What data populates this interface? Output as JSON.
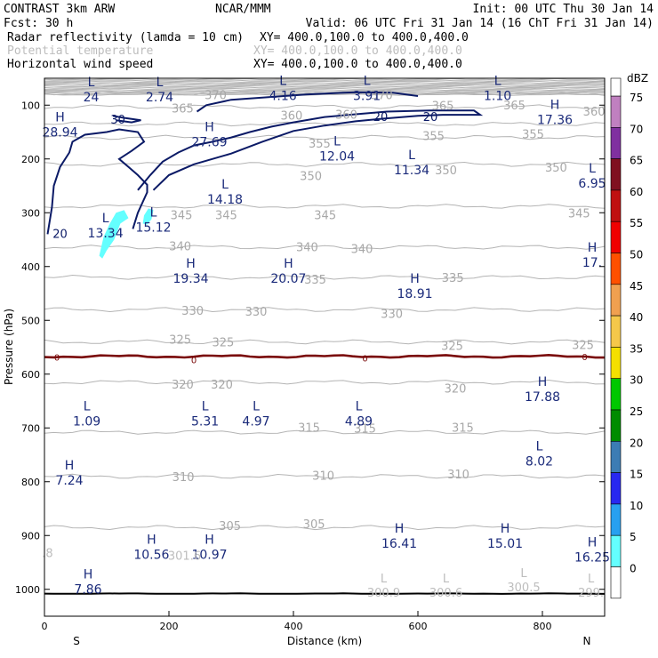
{
  "header": {
    "model": "CONTRAST  3km ARW",
    "center": "NCAR/MMM",
    "init": "Init: 00 UTC Thu 30 Jan 14",
    "fcst": "Fcst:   30 h",
    "valid": "Valid: 06 UTC Fri 31 Jan 14 (16 ChT Fri 31 Jan 14)",
    "fields": [
      {
        "name": "Radar reflectivity (lamda = 10 cm)",
        "xy": "XY= 400.0,100.0 to 400.0,400.0",
        "color": "#000000"
      },
      {
        "name": "Potential temperature",
        "xy": "XY= 400.0,100.0 to 400.0,400.0",
        "color": "#bdbdbd"
      },
      {
        "name": "Horizontal wind speed",
        "xy": "XY= 400.0,100.0 to 400.0,400.0",
        "color": "#000000"
      }
    ]
  },
  "chart_data": {
    "type": "cross-section",
    "xlabel": "Distance (km)",
    "ylabel": "Pressure (hPa)",
    "xlim": [
      0,
      900
    ],
    "ylim": [
      1050,
      50
    ],
    "xticks": [
      0,
      200,
      400,
      600,
      800
    ],
    "yticks": [
      100,
      200,
      300,
      400,
      500,
      600,
      700,
      800,
      900,
      1000
    ],
    "x_end_labels": {
      "left": "S",
      "right": "N"
    },
    "theta_contours": [
      {
        "value": 370,
        "p": 78
      },
      {
        "value": 365,
        "p": 103
      },
      {
        "value": 360,
        "p": 135
      },
      {
        "value": 355,
        "p": 160
      },
      {
        "value": 350,
        "p": 210
      },
      {
        "value": 345,
        "p": 288
      },
      {
        "value": 340,
        "p": 364
      },
      {
        "value": 335,
        "p": 420
      },
      {
        "value": 330,
        "p": 480
      },
      {
        "value": 325,
        "p": 540
      },
      {
        "value": 320,
        "p": 615
      },
      {
        "value": 315,
        "p": 708
      },
      {
        "value": 310,
        "p": 790
      },
      {
        "value": 305,
        "p": 885
      }
    ],
    "theta_labels": [
      {
        "text": "370",
        "x": 275,
        "p": 82
      },
      {
        "text": "370",
        "x": 542,
        "p": 82
      },
      {
        "text": "365",
        "x": 222,
        "p": 107
      },
      {
        "text": "365",
        "x": 640,
        "p": 102
      },
      {
        "text": "365",
        "x": 755,
        "p": 101
      },
      {
        "text": "360",
        "x": 397,
        "p": 120
      },
      {
        "text": "360",
        "x": 485,
        "p": 119
      },
      {
        "text": "360",
        "x": 883,
        "p": 113
      },
      {
        "text": "355",
        "x": 442,
        "p": 172
      },
      {
        "text": "355",
        "x": 625,
        "p": 158
      },
      {
        "text": "355",
        "x": 785,
        "p": 155
      },
      {
        "text": "350",
        "x": 428,
        "p": 233
      },
      {
        "text": "350",
        "x": 645,
        "p": 222
      },
      {
        "text": "350",
        "x": 822,
        "p": 217
      },
      {
        "text": "345",
        "x": 220,
        "p": 305
      },
      {
        "text": "345",
        "x": 292,
        "p": 305
      },
      {
        "text": "345",
        "x": 451,
        "p": 305
      },
      {
        "text": "345",
        "x": 859,
        "p": 302
      },
      {
        "text": "340",
        "x": 218,
        "p": 363
      },
      {
        "text": "340",
        "x": 422,
        "p": 365
      },
      {
        "text": "340",
        "x": 510,
        "p": 368
      },
      {
        "text": "335",
        "x": 435,
        "p": 425
      },
      {
        "text": "335",
        "x": 656,
        "p": 422
      },
      {
        "text": "330",
        "x": 238,
        "p": 483
      },
      {
        "text": "330",
        "x": 340,
        "p": 485
      },
      {
        "text": "330",
        "x": 558,
        "p": 489
      },
      {
        "text": "325",
        "x": 218,
        "p": 537
      },
      {
        "text": "325",
        "x": 287,
        "p": 542
      },
      {
        "text": "325",
        "x": 655,
        "p": 548
      },
      {
        "text": "325",
        "x": 865,
        "p": 547
      },
      {
        "text": "320",
        "x": 222,
        "p": 620
      },
      {
        "text": "320",
        "x": 285,
        "p": 620
      },
      {
        "text": "320",
        "x": 660,
        "p": 628
      },
      {
        "text": "315",
        "x": 425,
        "p": 700
      },
      {
        "text": "315",
        "x": 515,
        "p": 702
      },
      {
        "text": "315",
        "x": 672,
        "p": 700
      },
      {
        "text": "310",
        "x": 223,
        "p": 792
      },
      {
        "text": "310",
        "x": 448,
        "p": 790
      },
      {
        "text": "310",
        "x": 665,
        "p": 787
      },
      {
        "text": "305",
        "x": 298,
        "p": 883
      },
      {
        "text": "305",
        "x": 433,
        "p": 880
      }
    ],
    "wind_speed_contours": [
      {
        "value": 30,
        "points": [
          [
            110,
            120
          ],
          [
            130,
            124
          ],
          [
            155,
            128
          ],
          [
            140,
            132
          ],
          [
            115,
            128
          ]
        ]
      },
      {
        "value": 20,
        "points": [
          [
            5,
            340
          ],
          [
            12,
            290
          ],
          [
            15,
            250
          ],
          [
            25,
            215
          ],
          [
            40,
            188
          ],
          [
            45,
            168
          ],
          [
            65,
            155
          ],
          [
            100,
            150
          ],
          [
            120,
            145
          ],
          [
            150,
            150
          ],
          [
            160,
            168
          ],
          [
            140,
            185
          ],
          [
            120,
            200
          ],
          [
            135,
            215
          ],
          [
            150,
            230
          ],
          [
            165,
            248
          ],
          [
            165,
            262
          ],
          [
            150,
            300
          ],
          [
            142,
            330
          ]
        ]
      },
      {
        "value": 20,
        "points": [
          [
            150,
            258
          ],
          [
            170,
            230
          ],
          [
            190,
            205
          ],
          [
            215,
            188
          ],
          [
            240,
            175
          ],
          [
            270,
            168
          ],
          [
            300,
            160
          ],
          [
            330,
            150
          ],
          [
            365,
            140
          ],
          [
            400,
            132
          ],
          [
            450,
            122
          ],
          [
            500,
            117
          ],
          [
            550,
            112
          ],
          [
            620,
            110
          ],
          [
            690,
            110
          ],
          [
            700,
            118
          ],
          [
            640,
            118
          ],
          [
            600,
            120
          ],
          [
            545,
            125
          ],
          [
            500,
            130
          ],
          [
            450,
            138
          ],
          [
            400,
            148
          ],
          [
            350,
            168
          ],
          [
            300,
            190
          ],
          [
            240,
            210
          ],
          [
            200,
            230
          ],
          [
            175,
            258
          ]
        ]
      },
      {
        "value": 20,
        "points": [
          [
            245,
            112
          ],
          [
            260,
            100
          ],
          [
            300,
            90
          ],
          [
            360,
            85
          ],
          [
            420,
            80
          ],
          [
            500,
            76
          ],
          [
            560,
            77
          ],
          [
            600,
            83
          ]
        ]
      }
    ],
    "wind_labels": [
      {
        "text": "30",
        "x": 118,
        "p": 128
      },
      {
        "text": "20",
        "x": 25,
        "p": 340
      },
      {
        "text": "20",
        "x": 540,
        "p": 123
      },
      {
        "text": "20",
        "x": 620,
        "p": 123
      }
    ],
    "reflectivity_patches": [
      {
        "dbz": 5,
        "points": [
          [
            88,
            380
          ],
          [
            95,
            345
          ],
          [
            105,
            320
          ],
          [
            115,
            300
          ],
          [
            128,
            295
          ],
          [
            135,
            310
          ],
          [
            122,
            320
          ],
          [
            112,
            350
          ],
          [
            100,
            370
          ],
          [
            93,
            385
          ]
        ]
      },
      {
        "dbz": 5,
        "points": [
          [
            158,
            320
          ],
          [
            160,
            305
          ],
          [
            167,
            292
          ],
          [
            175,
            295
          ],
          [
            172,
            312
          ],
          [
            165,
            322
          ]
        ]
      }
    ],
    "zero_line_p": 567,
    "zero_labels": [
      {
        "text": "0",
        "x": 20,
        "p": 568
      },
      {
        "text": "0",
        "x": 240,
        "p": 573
      },
      {
        "text": "0",
        "x": 515,
        "p": 570
      },
      {
        "text": "0",
        "x": 868,
        "p": 567
      }
    ],
    "surface_line_p": 1008,
    "extrema": [
      {
        "type": "L",
        "value": "24",
        "x": 75,
        "p": 65
      },
      {
        "type": "L",
        "value": "2.74",
        "x": 185,
        "p": 65
      },
      {
        "type": "L",
        "value": "4.16",
        "x": 383,
        "p": 62
      },
      {
        "type": "L",
        "value": "3.91",
        "x": 518,
        "p": 62
      },
      {
        "type": "L",
        "value": "1.10",
        "x": 728,
        "p": 62
      },
      {
        "type": "H",
        "value": "28.94",
        "x": 25,
        "p": 130
      },
      {
        "type": "H",
        "value": "27.69",
        "x": 265,
        "p": 148
      },
      {
        "type": "H",
        "value": "17.36",
        "x": 820,
        "p": 107
      },
      {
        "type": "L",
        "value": "12.04",
        "x": 470,
        "p": 175
      },
      {
        "type": "L",
        "value": "11.34",
        "x": 590,
        "p": 200
      },
      {
        "type": "L",
        "value": "6.95",
        "x": 880,
        "p": 225
      },
      {
        "type": "L",
        "value": "14.18",
        "x": 290,
        "p": 255
      },
      {
        "type": "L",
        "value": "13.34",
        "x": 98,
        "p": 318
      },
      {
        "type": "L",
        "value": "15.12",
        "x": 175,
        "p": 307
      },
      {
        "type": "H",
        "value": "17.",
        "x": 880,
        "p": 372
      },
      {
        "type": "H",
        "value": "19.34",
        "x": 235,
        "p": 402
      },
      {
        "type": "H",
        "value": "20.07",
        "x": 392,
        "p": 402
      },
      {
        "type": "H",
        "value": "18.91",
        "x": 595,
        "p": 430
      },
      {
        "type": "H",
        "value": "17.88",
        "x": 800,
        "p": 622
      },
      {
        "type": "L",
        "value": "1.09",
        "x": 68,
        "p": 667
      },
      {
        "type": "L",
        "value": "5.31",
        "x": 258,
        "p": 667
      },
      {
        "type": "L",
        "value": "4.97",
        "x": 340,
        "p": 667
      },
      {
        "type": "L",
        "value": "4.89",
        "x": 505,
        "p": 667
      },
      {
        "type": "L",
        "value": "8.02",
        "x": 795,
        "p": 742
      },
      {
        "type": "H",
        "value": "7.24",
        "x": 40,
        "p": 777
      },
      {
        "type": "H",
        "value": "16.41",
        "x": 570,
        "p": 895
      },
      {
        "type": "H",
        "value": "15.01",
        "x": 740,
        "p": 895
      },
      {
        "type": "H",
        "value": "16.25",
        "x": 880,
        "p": 920
      },
      {
        "type": "H",
        "value": "10.56",
        "x": 172,
        "p": 915
      },
      {
        "type": "H",
        "value": "10.97",
        "x": 265,
        "p": 915
      },
      {
        "type": "H",
        "value": "7.86",
        "x": 70,
        "p": 980
      }
    ],
    "theta_extrema": [
      {
        "type": "",
        "value": "301.6",
        "x": 225,
        "p": 942
      },
      {
        "type": "",
        "value": ".8",
        "x": 5,
        "p": 937
      },
      {
        "type": "L",
        "value": "300.9",
        "x": 545,
        "p": 1010
      },
      {
        "type": "L",
        "value": "300.6",
        "x": 645,
        "p": 1010
      },
      {
        "type": "L",
        "value": "300.5",
        "x": 770,
        "p": 1000
      },
      {
        "type": "L",
        "value": "299.",
        "x": 878,
        "p": 1010
      }
    ],
    "colorbar": {
      "unit": "dBZ",
      "levels": [
        "75",
        "70",
        "65",
        "60",
        "55",
        "50",
        "45",
        "40",
        "35",
        "30",
        "25",
        "20",
        "15",
        "10",
        "5",
        "0"
      ],
      "colors": [
        "#c080c0",
        "#8030a0",
        "#801020",
        "#c01010",
        "#f00000",
        "#ff5000",
        "#f0a050",
        "#f5c84a",
        "#f5e000",
        "#00c800",
        "#008c00",
        "#3c7cb4",
        "#2828f0",
        "#28a0f0",
        "#64ffff",
        "#ffffff"
      ]
    }
  }
}
